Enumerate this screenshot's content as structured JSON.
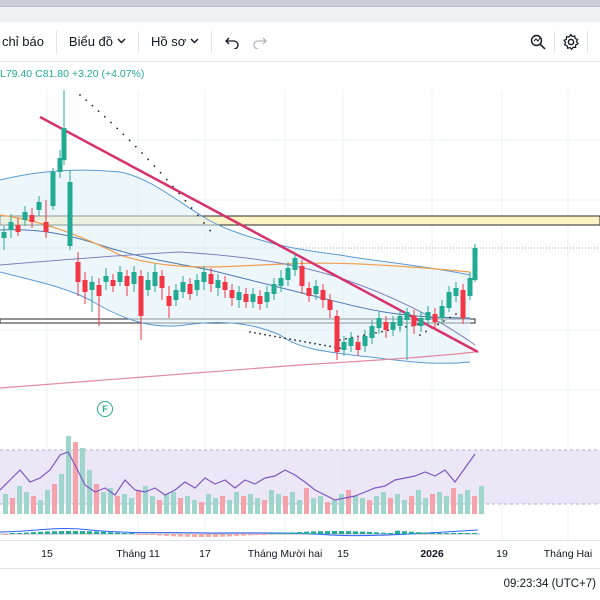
{
  "toolbar": {
    "indicators_label": "chỉ báo",
    "chart_label": "Biểu đồ",
    "profile_label": "Hồ sơ"
  },
  "legend": {
    "low": "L79.40",
    "close": "C81.80",
    "change": "+3.20 (+4.07%)"
  },
  "event_marker": "F",
  "time_axis": {
    "labels": [
      "15",
      "Tháng 11",
      "17",
      "Tháng Mười hai",
      "15",
      "2026",
      "19",
      "Tháng Hai"
    ]
  },
  "status": {
    "clock": "09:23:34 (UTC+7)"
  },
  "colors": {
    "up": "#22ab94",
    "down": "#f23645",
    "trendline": "#d6336c",
    "bollinger": "#5b9bd5",
    "ema": "#f0a050",
    "rsi_band": "#e8e3f5",
    "support_zone": "#fdf3c4"
  },
  "icons": [
    "chevron-down-icon",
    "undo-icon",
    "redo-icon",
    "search-zoom-icon",
    "settings-gear-icon"
  ]
}
